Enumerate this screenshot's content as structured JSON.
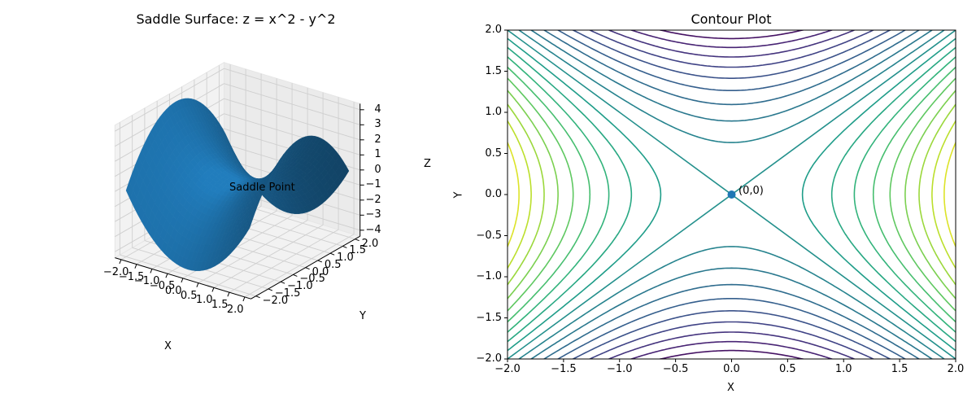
{
  "chart_data": [
    {
      "type": "surface3d",
      "title": "Saddle Surface: z = x^2 - y^2",
      "function": "z = x^2 - y^2",
      "xlabel": "X",
      "ylabel": "Y",
      "zlabel": "Z",
      "xlim": [
        -2,
        2
      ],
      "ylim": [
        -2,
        2
      ],
      "zlim": [
        -4,
        4
      ],
      "x_ticks": [
        "−2.0",
        "−1.5",
        "−1.0",
        "−0.5",
        "0.0",
        "0.5",
        "1.0",
        "1.5",
        "2.0"
      ],
      "y_ticks": [
        "−2.0",
        "−1.5",
        "−1.0",
        "−0.5",
        "0.0",
        "0.5",
        "1.0",
        "1.5",
        "2.0"
      ],
      "z_ticks": [
        "−4",
        "−3",
        "−2",
        "−1",
        "0",
        "1",
        "2",
        "3",
        "4"
      ],
      "annotation": {
        "text": "Saddle Point",
        "x": 0,
        "y": 0,
        "z": 0
      },
      "surface_color": "#1f77b4",
      "grid": true
    },
    {
      "type": "contour",
      "title": "Contour Plot",
      "function": "z = x^2 - y^2",
      "xlabel": "X",
      "ylabel": "Y",
      "xlim": [
        -2,
        2
      ],
      "ylim": [
        -2,
        2
      ],
      "x_ticks": [
        "−2.0",
        "−1.5",
        "−1.0",
        "−0.5",
        "0.0",
        "0.5",
        "1.0",
        "1.5",
        "2.0"
      ],
      "y_ticks": [
        "2.0",
        "1.5",
        "1.0",
        "0.5",
        "0.0",
        "−0.5",
        "−1.0",
        "−1.5",
        "−2.0"
      ],
      "levels": [
        -3.6,
        -3.2,
        -2.8,
        -2.4,
        -2.0,
        -1.6,
        -1.2,
        -0.8,
        -0.4,
        0.0,
        0.4,
        0.8,
        1.2,
        1.6,
        2.0,
        2.4,
        2.8,
        3.2,
        3.6
      ],
      "colormap": "viridis",
      "marker": {
        "x": 0,
        "y": 0,
        "label": "(0,0)",
        "color": "#1f77b4"
      },
      "grid": false
    }
  ]
}
